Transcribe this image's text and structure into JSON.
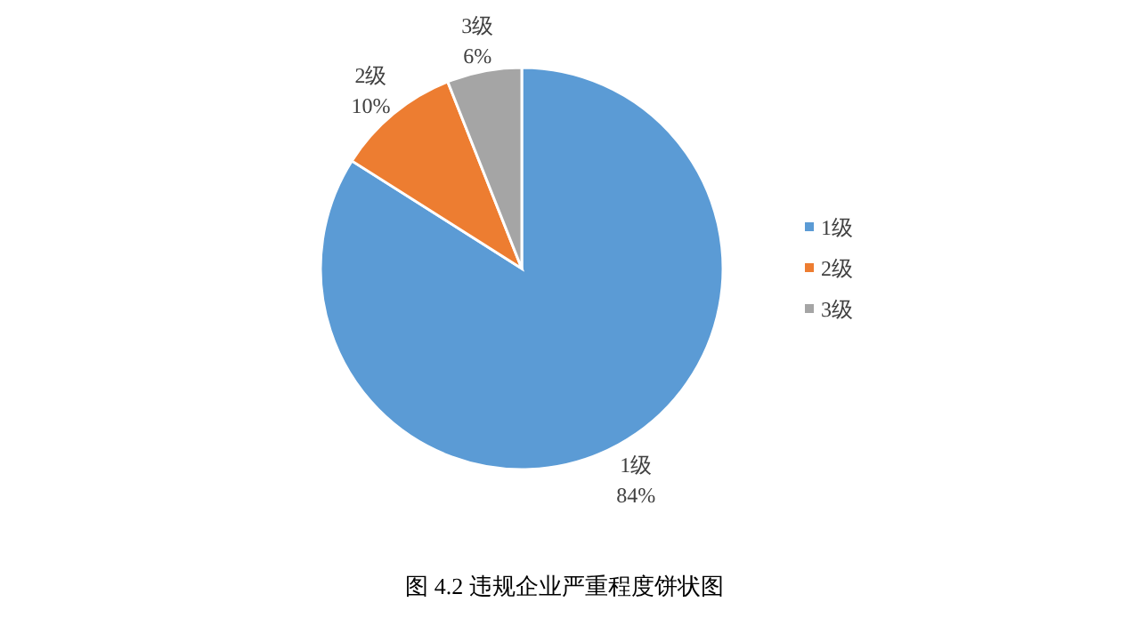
{
  "chart_data": {
    "type": "pie",
    "title": "图 4.2  违规企业严重程度饼状图",
    "categories": [
      "1级",
      "2级",
      "3级"
    ],
    "values": [
      84,
      10,
      6
    ],
    "value_labels": [
      "84%",
      "10%",
      "6%"
    ],
    "colors": [
      "#5b9bd5",
      "#ed7d31",
      "#a5a5a5"
    ],
    "legend": "right"
  }
}
